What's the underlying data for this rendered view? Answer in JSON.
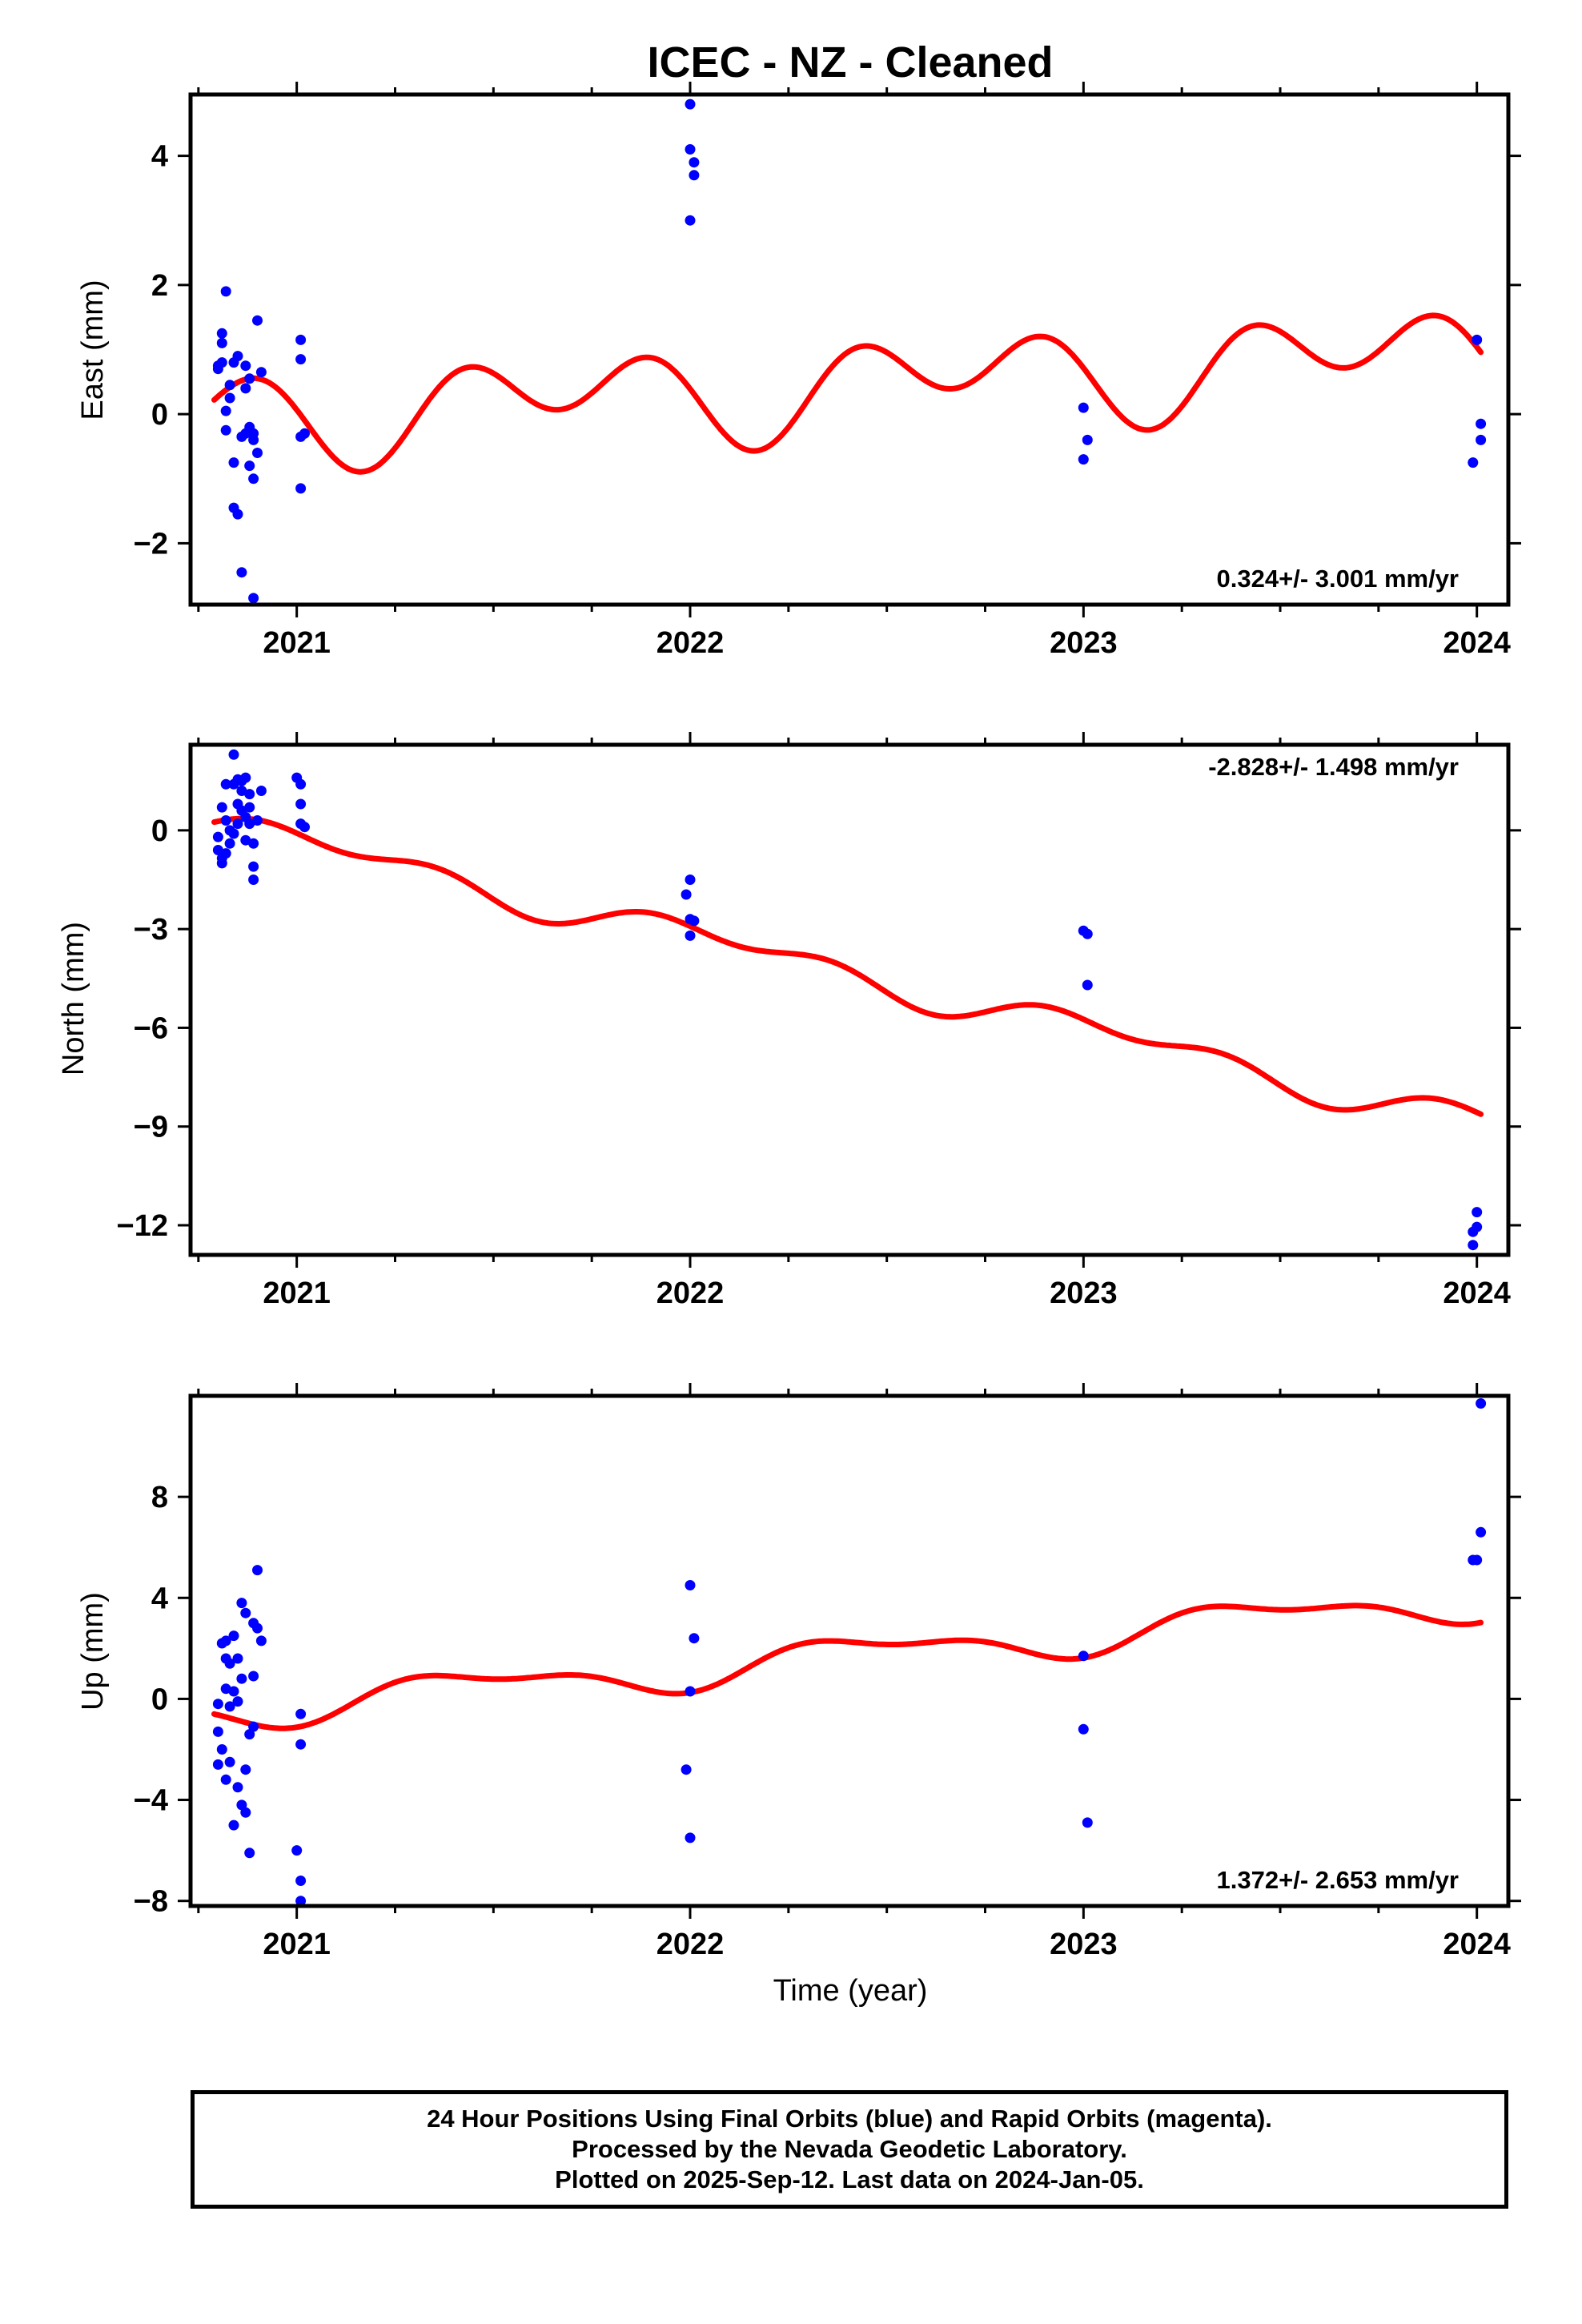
{
  "title": "ICEC  - NZ - Cleaned",
  "xlabel": "Time (year)",
  "footer": {
    "lines": [
      "24 Hour Positions Using Final Orbits (blue) and Rapid Orbits (magenta).",
      "Processed by the Nevada Geodetic Laboratory.",
      "Plotted on 2025-Sep-12. Last data on 2024-Jan-05."
    ]
  },
  "colors": {
    "points": "#0000ff",
    "fit": "#ff0000",
    "frame": "#000000"
  },
  "chart_data": [
    {
      "type": "scatter",
      "name": "east",
      "ylabel": "East (mm)",
      "rate_label": "0.324+/- 3.001 mm/yr",
      "rate_position": "bottom-right",
      "xlim": [
        2020.73,
        2024.08
      ],
      "ylim": [
        -2.95,
        4.95
      ],
      "xticks": [
        2021,
        2022,
        2023,
        2024
      ],
      "xtick_labels": [
        "2021",
        "2022",
        "2023",
        "2024"
      ],
      "yticks": [
        -2,
        0,
        2,
        4
      ],
      "ytick_labels": [
        "−2",
        "0",
        "2",
        "4"
      ],
      "points": [
        [
          2020.8,
          0.75
        ],
        [
          2020.8,
          0.7
        ],
        [
          2020.81,
          1.1
        ],
        [
          2020.81,
          1.25
        ],
        [
          2020.81,
          0.8
        ],
        [
          2020.82,
          -0.25
        ],
        [
          2020.82,
          0.05
        ],
        [
          2020.82,
          1.9
        ],
        [
          2020.83,
          0.45
        ],
        [
          2020.83,
          0.25
        ],
        [
          2020.84,
          -0.75
        ],
        [
          2020.84,
          -1.45
        ],
        [
          2020.84,
          0.8
        ],
        [
          2020.85,
          -1.55
        ],
        [
          2020.85,
          0.9
        ],
        [
          2020.86,
          -0.35
        ],
        [
          2020.86,
          -2.45
        ],
        [
          2020.87,
          -0.3
        ],
        [
          2020.87,
          0.75
        ],
        [
          2020.87,
          0.4
        ],
        [
          2020.88,
          -0.8
        ],
        [
          2020.88,
          -0.2
        ],
        [
          2020.88,
          0.55
        ],
        [
          2020.89,
          -0.4
        ],
        [
          2020.89,
          -1.0
        ],
        [
          2020.89,
          -0.3
        ],
        [
          2020.89,
          -2.85
        ],
        [
          2020.9,
          -0.6
        ],
        [
          2020.9,
          1.45
        ],
        [
          2020.91,
          0.65
        ],
        [
          2021.01,
          1.15
        ],
        [
          2021.01,
          0.85
        ],
        [
          2021.01,
          -0.35
        ],
        [
          2021.01,
          -1.15
        ],
        [
          2021.02,
          -0.3
        ],
        [
          2022.0,
          4.8
        ],
        [
          2022.0,
          4.1
        ],
        [
          2022.01,
          3.9
        ],
        [
          2022.01,
          3.7
        ],
        [
          2022.0,
          3.0
        ],
        [
          2023.0,
          0.1
        ],
        [
          2023.01,
          -0.4
        ],
        [
          2023.0,
          -0.7
        ],
        [
          2024.0,
          1.15
        ],
        [
          2024.01,
          -0.15
        ],
        [
          2024.01,
          -0.4
        ],
        [
          2023.99,
          -0.75
        ]
      ],
      "fit": {
        "t0": 2020.79,
        "t1": 2024.01,
        "value_at_t0": 0.22,
        "rate": 0.324,
        "annual_amp": 0.4,
        "annual_phase": 2.35,
        "semiannual_amp": 0.55,
        "semiannual_phase": 0.0
      }
    },
    {
      "type": "scatter",
      "name": "north",
      "ylabel": "North (mm)",
      "rate_label": "-2.828+/- 1.498 mm/yr",
      "rate_position": "top-right",
      "xlim": [
        2020.73,
        2024.08
      ],
      "ylim": [
        -12.9,
        2.6
      ],
      "xticks": [
        2021,
        2022,
        2023,
        2024
      ],
      "xtick_labels": [
        "2021",
        "2022",
        "2023",
        "2024"
      ],
      "yticks": [
        -12,
        -9,
        -6,
        -3,
        0
      ],
      "ytick_labels": [
        "−12",
        "−9",
        "−6",
        "−3",
        "0"
      ],
      "points": [
        [
          2020.8,
          -0.2
        ],
        [
          2020.8,
          -0.6
        ],
        [
          2020.81,
          -0.85
        ],
        [
          2020.81,
          -1.0
        ],
        [
          2020.81,
          0.7
        ],
        [
          2020.82,
          -0.7
        ],
        [
          2020.82,
          1.4
        ],
        [
          2020.82,
          0.3
        ],
        [
          2020.83,
          -0.4
        ],
        [
          2020.83,
          0.0
        ],
        [
          2020.84,
          -0.1
        ],
        [
          2020.84,
          1.4
        ],
        [
          2020.84,
          2.3
        ],
        [
          2020.85,
          1.55
        ],
        [
          2020.85,
          0.8
        ],
        [
          2020.85,
          0.2
        ],
        [
          2020.86,
          1.5
        ],
        [
          2020.86,
          1.2
        ],
        [
          2020.86,
          0.6
        ],
        [
          2020.87,
          1.6
        ],
        [
          2020.87,
          0.4
        ],
        [
          2020.87,
          -0.3
        ],
        [
          2020.88,
          1.1
        ],
        [
          2020.88,
          0.7
        ],
        [
          2020.88,
          0.2
        ],
        [
          2020.89,
          -0.4
        ],
        [
          2020.89,
          -1.1
        ],
        [
          2020.89,
          -1.5
        ],
        [
          2020.9,
          0.3
        ],
        [
          2020.91,
          1.2
        ],
        [
          2021.0,
          1.6
        ],
        [
          2021.01,
          1.4
        ],
        [
          2021.01,
          0.8
        ],
        [
          2021.01,
          0.2
        ],
        [
          2021.02,
          0.1
        ],
        [
          2022.0,
          -1.5
        ],
        [
          2021.99,
          -1.95
        ],
        [
          2022.0,
          -2.7
        ],
        [
          2022.01,
          -2.75
        ],
        [
          2022.0,
          -3.2
        ],
        [
          2023.0,
          -3.05
        ],
        [
          2023.01,
          -3.15
        ],
        [
          2023.01,
          -4.7
        ],
        [
          2024.0,
          -11.6
        ],
        [
          2024.0,
          -12.05
        ],
        [
          2023.99,
          -12.2
        ],
        [
          2023.99,
          -12.6
        ]
      ],
      "fit": {
        "t0": 2020.79,
        "t1": 2024.01,
        "value_at_t0": 0.25,
        "rate": -2.828,
        "annual_amp": 0.35,
        "annual_phase": -0.3,
        "semiannual_amp": 0.3,
        "semiannual_phase": 0.5
      }
    },
    {
      "type": "scatter",
      "name": "up",
      "ylabel": "Up (mm)",
      "rate_label": "1.372+/- 2.653 mm/yr",
      "rate_position": "bottom-right",
      "xlim": [
        2020.73,
        2024.08
      ],
      "ylim": [
        -8.2,
        12.0
      ],
      "xticks": [
        2021,
        2022,
        2023,
        2024
      ],
      "xtick_labels": [
        "2021",
        "2022",
        "2023",
        "2024"
      ],
      "yticks": [
        -8,
        -4,
        0,
        4,
        8
      ],
      "ytick_labels": [
        "−8",
        "−4",
        "0",
        "4",
        "8"
      ],
      "points": [
        [
          2020.8,
          -0.2
        ],
        [
          2020.8,
          -1.3
        ],
        [
          2020.8,
          -2.6
        ],
        [
          2020.81,
          -2.0
        ],
        [
          2020.81,
          2.2
        ],
        [
          2020.82,
          1.6
        ],
        [
          2020.82,
          0.4
        ],
        [
          2020.82,
          -3.2
        ],
        [
          2020.82,
          2.3
        ],
        [
          2020.83,
          1.4
        ],
        [
          2020.83,
          -0.3
        ],
        [
          2020.83,
          -2.5
        ],
        [
          2020.84,
          2.5
        ],
        [
          2020.84,
          0.3
        ],
        [
          2020.84,
          -5.0
        ],
        [
          2020.85,
          1.6
        ],
        [
          2020.85,
          -0.1
        ],
        [
          2020.85,
          -3.5
        ],
        [
          2020.86,
          3.8
        ],
        [
          2020.86,
          0.8
        ],
        [
          2020.86,
          -4.2
        ],
        [
          2020.87,
          3.4
        ],
        [
          2020.87,
          -2.8
        ],
        [
          2020.87,
          -4.5
        ],
        [
          2020.88,
          -6.1
        ],
        [
          2020.88,
          -1.4
        ],
        [
          2020.89,
          3.0
        ],
        [
          2020.89,
          0.9
        ],
        [
          2020.89,
          -1.1
        ],
        [
          2020.9,
          2.8
        ],
        [
          2020.9,
          5.1
        ],
        [
          2020.91,
          2.3
        ],
        [
          2021.0,
          -6.0
        ],
        [
          2021.01,
          -7.2
        ],
        [
          2021.01,
          -8.0
        ],
        [
          2021.01,
          -0.6
        ],
        [
          2021.01,
          -1.8
        ],
        [
          2022.0,
          4.5
        ],
        [
          2022.01,
          2.4
        ],
        [
          2022.0,
          0.3
        ],
        [
          2021.99,
          -2.8
        ],
        [
          2022.0,
          -5.5
        ],
        [
          2023.0,
          1.7
        ],
        [
          2023.0,
          -1.2
        ],
        [
          2023.01,
          -4.9
        ],
        [
          2024.01,
          11.7
        ],
        [
          2024.01,
          6.6
        ],
        [
          2024.0,
          5.5
        ],
        [
          2023.99,
          5.5
        ]
      ],
      "fit": {
        "t0": 2020.79,
        "t1": 2024.01,
        "value_at_t0": -0.6,
        "rate": 1.372,
        "annual_amp": 0.65,
        "annual_phase": 3.75,
        "semiannual_amp": 0.3,
        "semiannual_phase": 2.0
      }
    }
  ]
}
